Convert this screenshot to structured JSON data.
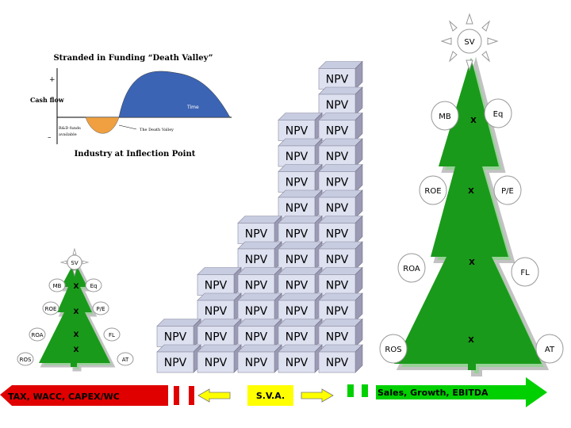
{
  "inset_chart": {
    "title": "Stranded in Funding “Death Valley”",
    "ylabel": "Cash flow",
    "plus_sign": "+",
    "minus_sign": "–",
    "time_label": "Time",
    "rd_note_line1": "R&D funds",
    "rd_note_line2": "available",
    "death_valley_label": "The Death Valley",
    "caption": "Industry at Inflection Point",
    "colors": {
      "positive": "#3c64b4",
      "negative": "#f0a040"
    }
  },
  "npv": {
    "label": "NPV",
    "columns": [
      2,
      4,
      6,
      10,
      12
    ],
    "face_color": "#dde1f0",
    "side_color": "#9a9ab4"
  },
  "big_tree": {
    "top": "SV",
    "left_labels": [
      "MB",
      "ROE",
      "ROA",
      "ROS"
    ],
    "right_labels": [
      "Eq",
      "P/E",
      "FL",
      "AT"
    ],
    "operators": [
      "X",
      "X",
      "X",
      "X"
    ],
    "color": "#1a9a1a"
  },
  "small_tree": {
    "top": "SV",
    "left_labels": [
      "MB",
      "ROE",
      "ROA",
      "ROS"
    ],
    "right_labels": [
      "Eq",
      "P/E",
      "FL",
      "AT"
    ],
    "operators": [
      "X",
      "X",
      "X",
      "X"
    ],
    "color": "#1a9a1a"
  },
  "bottom_banner": {
    "left_text": "TAX, WACC, CAPEX/WC",
    "middle_text": "S.V.A.",
    "right_text": "Sales, Growth, EBITDA",
    "colors": {
      "left": "#e00000",
      "middle": "#ffff00",
      "right": "#00d000"
    }
  }
}
